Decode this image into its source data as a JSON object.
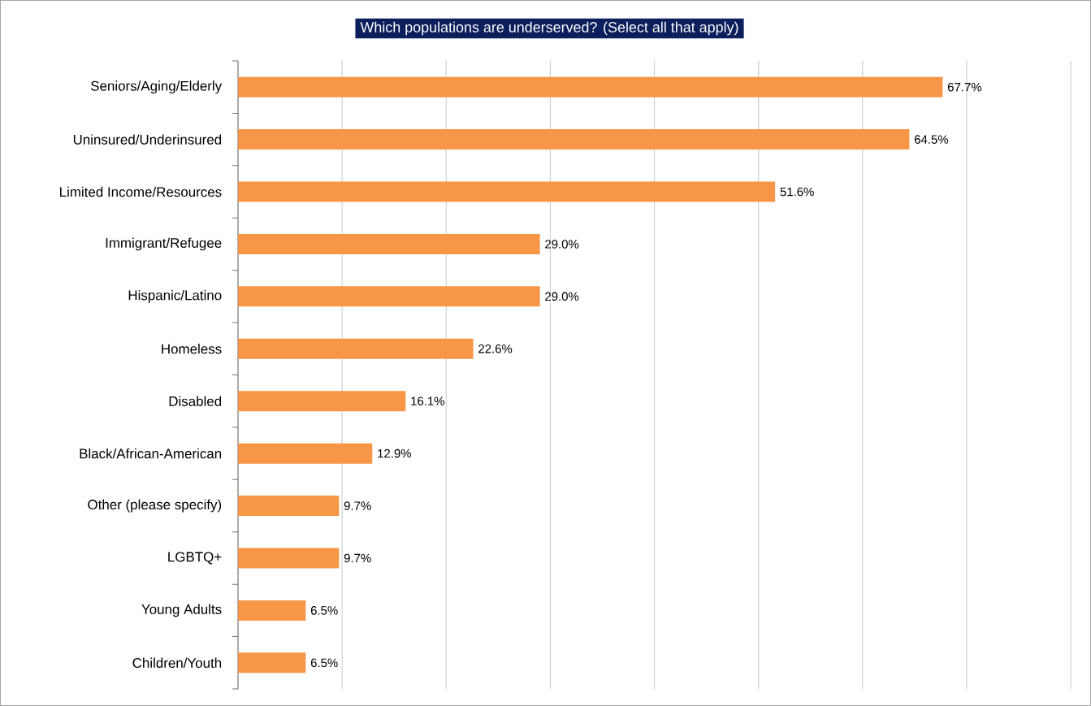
{
  "chart_data": {
    "type": "bar",
    "orientation": "horizontal",
    "title": "Which populations are underserved? (Select all that apply)",
    "categories": [
      "Seniors/Aging/Elderly",
      "Uninsured/Underinsured",
      "Limited Income/Resources",
      "Immigrant/Refugee",
      "Hispanic/Latino",
      "Homeless",
      "Disabled",
      "Black/African-American",
      "Other (please specify)",
      "LGBTQ+",
      "Young Adults",
      "Children/Youth"
    ],
    "values": [
      67.7,
      64.5,
      51.6,
      29.0,
      29.0,
      22.6,
      16.1,
      12.9,
      9.7,
      9.7,
      6.5,
      6.5
    ],
    "value_labels": [
      "67.7%",
      "64.5%",
      "51.6%",
      "29.0%",
      "29.0%",
      "22.6%",
      "16.1%",
      "12.9%",
      "9.7%",
      "9.7%",
      "6.5%",
      "6.5%"
    ],
    "color": "#f79646",
    "xlim": [
      0,
      80
    ],
    "xticks": [
      {
        "value": 0,
        "label": null
      },
      {
        "value": 10,
        "label": null
      },
      {
        "value": 20,
        "label": null
      },
      {
        "value": 30,
        "label": null
      },
      {
        "value": 40,
        "label": null
      },
      {
        "value": 50,
        "label": null
      },
      {
        "value": 60,
        "label": null
      },
      {
        "value": 70,
        "label": null
      },
      {
        "value": 80,
        "label": null
      }
    ],
    "grid": "x",
    "tick_labels": "y"
  }
}
